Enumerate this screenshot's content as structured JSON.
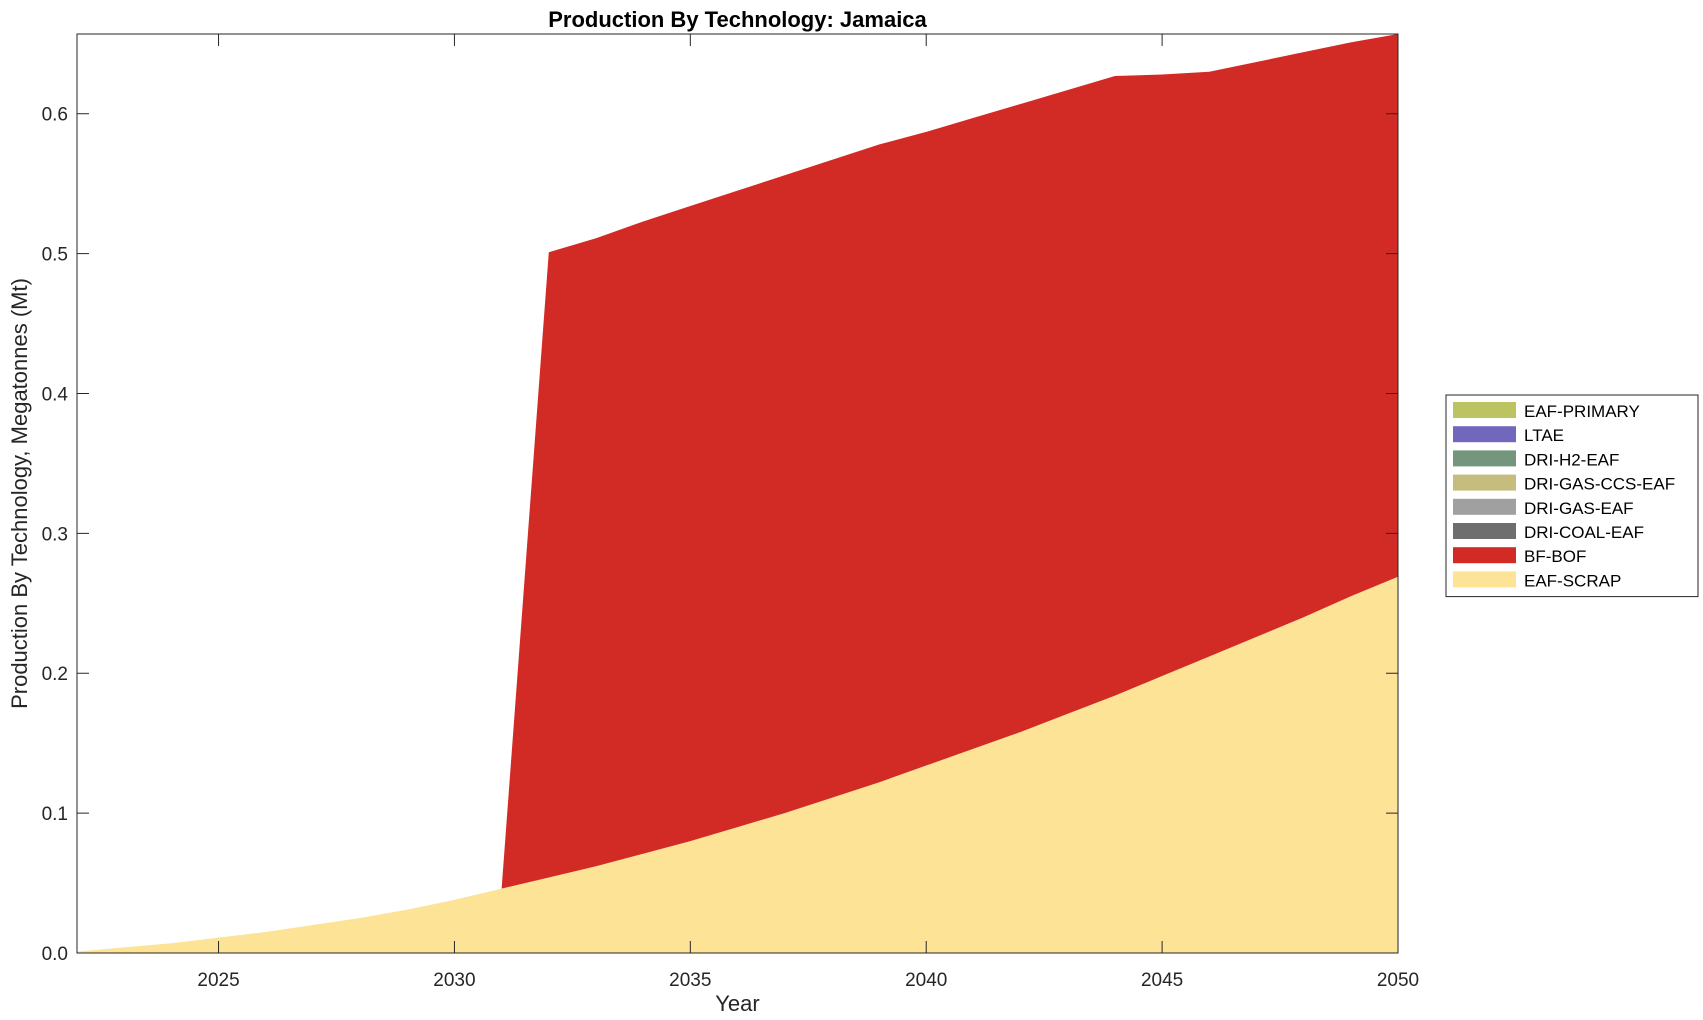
{
  "chart_data": {
    "type": "area",
    "stacked": true,
    "title": "Production By Technology: Jamaica",
    "xlabel": "Year",
    "ylabel": "Production By Technology, Megatonnes (Mt)",
    "xlim": [
      2022,
      2050
    ],
    "ylim": [
      0,
      0.657
    ],
    "xticks": [
      2025,
      2030,
      2035,
      2040,
      2045,
      2050
    ],
    "xtick_labels": [
      "2025",
      "2030",
      "2035",
      "2040",
      "2045",
      "2050"
    ],
    "yticks": [
      0,
      0.1,
      0.2,
      0.3,
      0.4,
      0.5,
      0.6
    ],
    "ytick_labels": [
      "0.0",
      "0.1",
      "0.2",
      "0.3",
      "0.4",
      "0.5",
      "0.6"
    ],
    "grid": false,
    "legend_position": "outside-right",
    "x": [
      2022,
      2023,
      2024,
      2025,
      2026,
      2027,
      2028,
      2029,
      2030,
      2031,
      2032,
      2033,
      2034,
      2035,
      2036,
      2037,
      2038,
      2039,
      2040,
      2041,
      2042,
      2043,
      2044,
      2045,
      2046,
      2047,
      2048,
      2049,
      2050
    ],
    "series": [
      {
        "name": "EAF-SCRAP",
        "color": "#FDE396",
        "values": [
          0.001,
          0.004,
          0.007,
          0.011,
          0.015,
          0.02,
          0.025,
          0.031,
          0.038,
          0.046,
          0.054,
          0.062,
          0.071,
          0.08,
          0.09,
          0.1,
          0.111,
          0.122,
          0.134,
          0.146,
          0.158,
          0.171,
          0.184,
          0.198,
          0.212,
          0.226,
          0.24,
          0.255,
          0.269
        ]
      },
      {
        "name": "BF-BOF",
        "color": "#D22B25",
        "values": [
          0,
          0,
          0,
          0,
          0,
          0,
          0,
          0,
          0,
          0,
          0.447,
          0.449,
          0.452,
          0.454,
          0.455,
          0.456,
          0.456,
          0.456,
          0.453,
          0.451,
          0.449,
          0.446,
          0.443,
          0.43,
          0.418,
          0.411,
          0.404,
          0.396,
          0.388
        ]
      },
      {
        "name": "DRI-COAL-EAF",
        "color": "#6E6E6E",
        "values": [
          0,
          0,
          0,
          0,
          0,
          0,
          0,
          0,
          0,
          0,
          0,
          0,
          0,
          0,
          0,
          0,
          0,
          0,
          0,
          0,
          0,
          0,
          0,
          0,
          0,
          0,
          0,
          0,
          0
        ]
      },
      {
        "name": "DRI-GAS-EAF",
        "color": "#A0A0A0",
        "values": [
          0,
          0,
          0,
          0,
          0,
          0,
          0,
          0,
          0,
          0,
          0,
          0,
          0,
          0,
          0,
          0,
          0,
          0,
          0,
          0,
          0,
          0,
          0,
          0,
          0,
          0,
          0,
          0,
          0
        ]
      },
      {
        "name": "DRI-GAS-CCS-EAF",
        "color": "#C6BC7E",
        "values": [
          0,
          0,
          0,
          0,
          0,
          0,
          0,
          0,
          0,
          0,
          0,
          0,
          0,
          0,
          0,
          0,
          0,
          0,
          0,
          0,
          0,
          0,
          0,
          0,
          0,
          0,
          0,
          0,
          0
        ]
      },
      {
        "name": "DRI-H2-EAF",
        "color": "#73967D",
        "values": [
          0,
          0,
          0,
          0,
          0,
          0,
          0,
          0,
          0,
          0,
          0,
          0,
          0,
          0,
          0,
          0,
          0,
          0,
          0,
          0,
          0,
          0,
          0,
          0,
          0,
          0,
          0,
          0,
          0
        ]
      },
      {
        "name": "LTAE",
        "color": "#7168BD",
        "values": [
          0,
          0,
          0,
          0,
          0,
          0,
          0,
          0,
          0,
          0,
          0,
          0,
          0,
          0,
          0,
          0,
          0,
          0,
          0,
          0,
          0,
          0,
          0,
          0,
          0,
          0,
          0,
          0,
          0
        ]
      },
      {
        "name": "EAF-PRIMARY",
        "color": "#BCC462",
        "values": [
          0,
          0,
          0,
          0,
          0,
          0,
          0,
          0,
          0,
          0,
          0,
          0,
          0,
          0,
          0,
          0,
          0,
          0,
          0,
          0,
          0,
          0,
          0,
          0,
          0,
          0,
          0,
          0,
          0
        ]
      }
    ],
    "legend_order": [
      "EAF-PRIMARY",
      "LTAE",
      "DRI-H2-EAF",
      "DRI-GAS-CCS-EAF",
      "DRI-GAS-EAF",
      "DRI-COAL-EAF",
      "BF-BOF",
      "EAF-SCRAP"
    ]
  }
}
